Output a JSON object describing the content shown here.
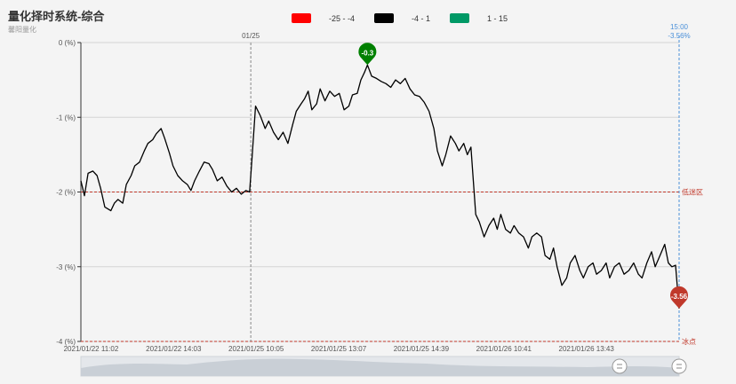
{
  "title": "量化择时系统-综合",
  "subtitle": "馨阳量化",
  "legend": [
    {
      "label": "-25 - -4",
      "color": "#ff0000"
    },
    {
      "label": "-4 - 1",
      "color": "#000000"
    },
    {
      "label": "1 - 15",
      "color": "#009966"
    }
  ],
  "chart_data": {
    "type": "line",
    "yticks": [
      {
        "value": 0,
        "label": "0 (%)"
      },
      {
        "value": -1,
        "label": "-1 (%)"
      },
      {
        "value": -2,
        "label": "-2 (%)"
      },
      {
        "value": -3,
        "label": "-3 (%)"
      },
      {
        "value": -4,
        "label": "-4 (%)"
      }
    ],
    "ylim": [
      -4,
      0
    ],
    "xlim": [
      0,
      100
    ],
    "xticks": [
      {
        "x": 1.7,
        "label": "2021/01/22 11:02"
      },
      {
        "x": 15.5,
        "label": "2021/01/22 14:03"
      },
      {
        "x": 29.3,
        "label": "2021/01/25 10:05"
      },
      {
        "x": 43.1,
        "label": "2021/01/25 13:07"
      },
      {
        "x": 56.9,
        "label": "2021/01/25 14:39"
      },
      {
        "x": 70.7,
        "label": "2021/01/26 10:41"
      },
      {
        "x": 84.5,
        "label": "2021/01/26 13:43"
      }
    ],
    "day_separator": {
      "x": 28.4,
      "label": "01/25"
    },
    "current_marker": {
      "x": 100,
      "label": "15:00",
      "value_label": "-3.56%"
    },
    "thresholds": [
      {
        "value": -2,
        "label": "低迷区",
        "color": "#c0392b"
      },
      {
        "value": -4,
        "label": "冰点",
        "color": "#c0392b"
      }
    ],
    "max_marker": {
      "x": 47.9,
      "value": -0.3,
      "label": "-0.3",
      "color": "#008000"
    },
    "min_marker": {
      "x": 100,
      "value": -3.56,
      "label": "-3.56",
      "color": "#c0392b"
    },
    "series": [
      {
        "color": "#000000",
        "points": [
          [
            0,
            -1.85
          ],
          [
            0.6,
            -2.05
          ],
          [
            1.2,
            -1.75
          ],
          [
            2,
            -1.72
          ],
          [
            2.7,
            -1.78
          ],
          [
            3.3,
            -1.95
          ],
          [
            4,
            -2.2
          ],
          [
            5,
            -2.25
          ],
          [
            5.6,
            -2.15
          ],
          [
            6.2,
            -2.1
          ],
          [
            7,
            -2.15
          ],
          [
            7.6,
            -1.9
          ],
          [
            8.4,
            -1.78
          ],
          [
            9,
            -1.65
          ],
          [
            9.8,
            -1.6
          ],
          [
            10.6,
            -1.45
          ],
          [
            11.2,
            -1.35
          ],
          [
            12,
            -1.3
          ],
          [
            12.6,
            -1.22
          ],
          [
            13.4,
            -1.15
          ],
          [
            14,
            -1.28
          ],
          [
            14.8,
            -1.48
          ],
          [
            15.4,
            -1.65
          ],
          [
            16.2,
            -1.78
          ],
          [
            17,
            -1.85
          ],
          [
            17.8,
            -1.9
          ],
          [
            18.4,
            -1.98
          ],
          [
            19,
            -1.85
          ],
          [
            19.8,
            -1.72
          ],
          [
            20.6,
            -1.6
          ],
          [
            21.4,
            -1.62
          ],
          [
            22,
            -1.7
          ],
          [
            22.8,
            -1.85
          ],
          [
            23.6,
            -1.8
          ],
          [
            24.4,
            -1.92
          ],
          [
            25.2,
            -2.0
          ],
          [
            26,
            -1.95
          ],
          [
            26.8,
            -2.03
          ],
          [
            27.6,
            -1.98
          ],
          [
            28.2,
            -2.0
          ],
          [
            28.6,
            -1.55
          ],
          [
            29.2,
            -0.85
          ],
          [
            30,
            -0.98
          ],
          [
            30.8,
            -1.15
          ],
          [
            31.4,
            -1.05
          ],
          [
            32.2,
            -1.2
          ],
          [
            33,
            -1.3
          ],
          [
            33.8,
            -1.2
          ],
          [
            34.6,
            -1.35
          ],
          [
            35.4,
            -1.1
          ],
          [
            36,
            -0.92
          ],
          [
            36.8,
            -0.82
          ],
          [
            37.4,
            -0.75
          ],
          [
            38,
            -0.65
          ],
          [
            38.6,
            -0.9
          ],
          [
            39.4,
            -0.82
          ],
          [
            40,
            -0.62
          ],
          [
            40.8,
            -0.78
          ],
          [
            41.6,
            -0.65
          ],
          [
            42.4,
            -0.72
          ],
          [
            43.2,
            -0.68
          ],
          [
            44,
            -0.9
          ],
          [
            44.8,
            -0.85
          ],
          [
            45.4,
            -0.7
          ],
          [
            46.2,
            -0.68
          ],
          [
            46.8,
            -0.5
          ],
          [
            47.4,
            -0.4
          ],
          [
            47.9,
            -0.3
          ],
          [
            48.6,
            -0.45
          ],
          [
            49.4,
            -0.48
          ],
          [
            50.2,
            -0.52
          ],
          [
            51,
            -0.55
          ],
          [
            51.8,
            -0.6
          ],
          [
            52.6,
            -0.5
          ],
          [
            53.4,
            -0.55
          ],
          [
            54.2,
            -0.48
          ],
          [
            55,
            -0.62
          ],
          [
            55.8,
            -0.7
          ],
          [
            56.6,
            -0.72
          ],
          [
            57.4,
            -0.8
          ],
          [
            58.2,
            -0.92
          ],
          [
            59,
            -1.15
          ],
          [
            59.6,
            -1.45
          ],
          [
            60.4,
            -1.65
          ],
          [
            61,
            -1.5
          ],
          [
            61.8,
            -1.25
          ],
          [
            62.6,
            -1.35
          ],
          [
            63.2,
            -1.45
          ],
          [
            64,
            -1.35
          ],
          [
            64.6,
            -1.5
          ],
          [
            65.2,
            -1.4
          ],
          [
            65.6,
            -1.85
          ],
          [
            66,
            -2.3
          ],
          [
            66.6,
            -2.4
          ],
          [
            67.4,
            -2.6
          ],
          [
            68.2,
            -2.45
          ],
          [
            69,
            -2.35
          ],
          [
            69.6,
            -2.5
          ],
          [
            70.2,
            -2.3
          ],
          [
            71,
            -2.5
          ],
          [
            71.8,
            -2.55
          ],
          [
            72.4,
            -2.45
          ],
          [
            73.2,
            -2.55
          ],
          [
            74,
            -2.6
          ],
          [
            74.8,
            -2.75
          ],
          [
            75.4,
            -2.6
          ],
          [
            76.2,
            -2.55
          ],
          [
            77,
            -2.6
          ],
          [
            77.6,
            -2.85
          ],
          [
            78.4,
            -2.9
          ],
          [
            79,
            -2.75
          ],
          [
            79.6,
            -3.0
          ],
          [
            80.4,
            -3.25
          ],
          [
            81.2,
            -3.15
          ],
          [
            81.8,
            -2.95
          ],
          [
            82.6,
            -2.85
          ],
          [
            83.4,
            -3.05
          ],
          [
            84,
            -3.15
          ],
          [
            84.8,
            -3.0
          ],
          [
            85.6,
            -2.95
          ],
          [
            86.2,
            -3.1
          ],
          [
            87,
            -3.05
          ],
          [
            87.8,
            -2.95
          ],
          [
            88.4,
            -3.15
          ],
          [
            89.2,
            -3.0
          ],
          [
            90,
            -2.95
          ],
          [
            90.8,
            -3.1
          ],
          [
            91.6,
            -3.05
          ],
          [
            92.4,
            -2.95
          ],
          [
            93.2,
            -3.1
          ],
          [
            93.8,
            -3.15
          ],
          [
            94.6,
            -2.95
          ],
          [
            95.4,
            -2.8
          ],
          [
            96,
            -3.0
          ],
          [
            96.8,
            -2.85
          ],
          [
            97.6,
            -2.7
          ],
          [
            98.2,
            -2.95
          ],
          [
            98.8,
            -3.0
          ],
          [
            99.4,
            -2.98
          ],
          [
            100,
            -3.56
          ]
        ]
      }
    ]
  }
}
